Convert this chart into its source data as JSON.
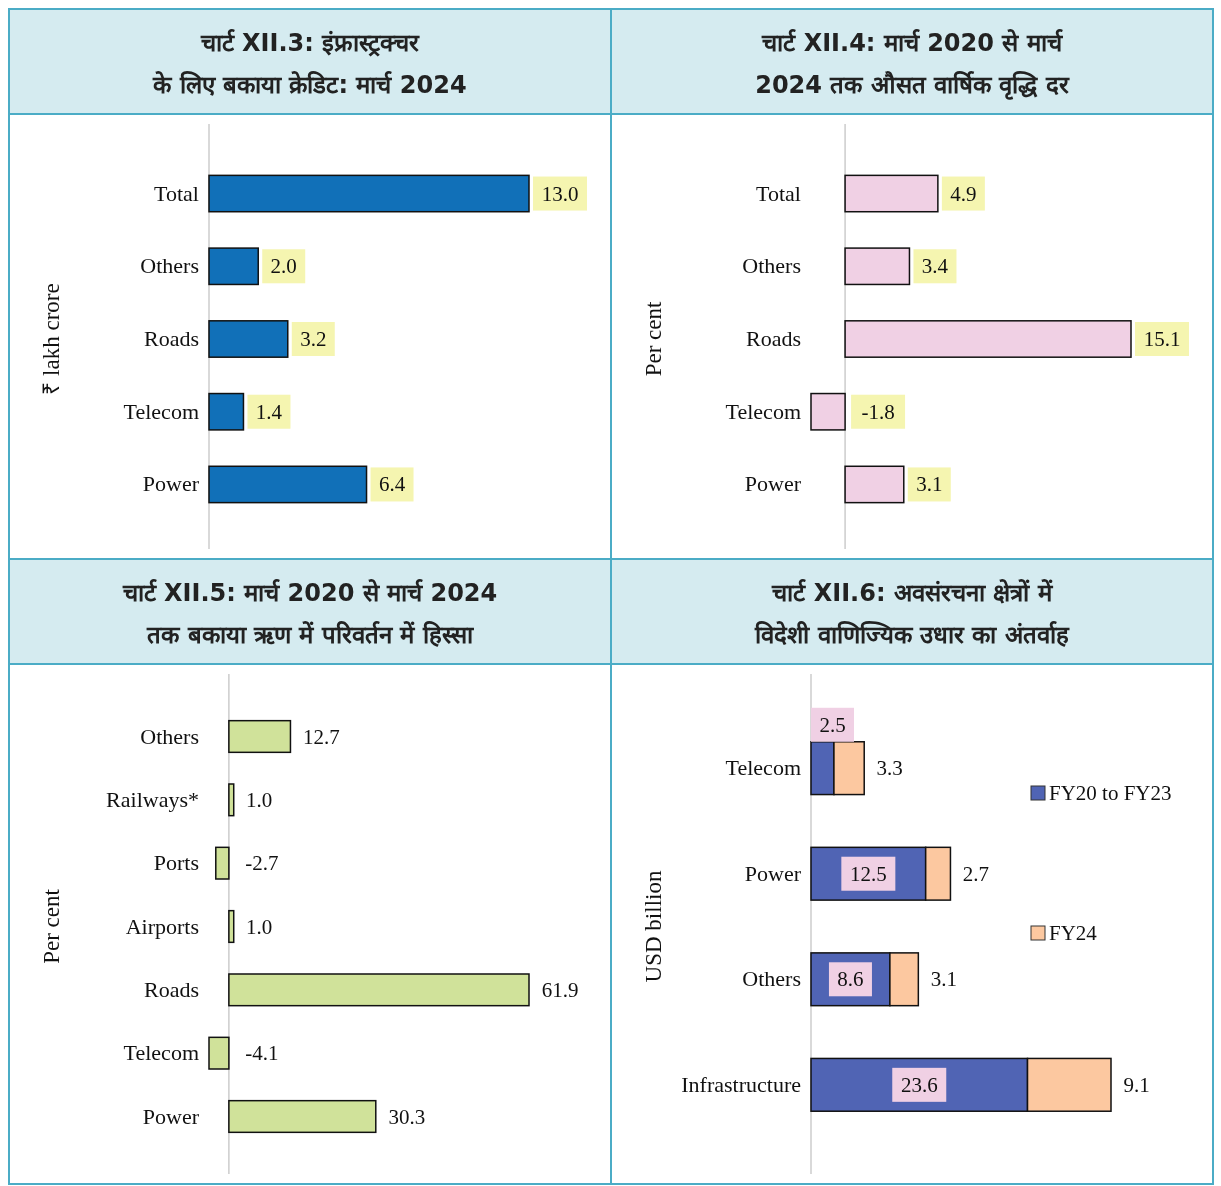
{
  "chart_data": [
    {
      "type": "bar",
      "orientation": "horizontal",
      "title": "चार्ट XII.3: इंफ्रास्ट्रक्चर के लिए बकाया क्रेडिट: मार्च 2024",
      "ylabel": "₹ lakh crore",
      "categories": [
        "Total",
        "Others",
        "Roads",
        "Telecom",
        "Power"
      ],
      "values": [
        13.0,
        2.0,
        3.2,
        1.4,
        6.4
      ],
      "value_labels": [
        "13.0",
        "2.0",
        "3.2",
        "1.4",
        "6.4"
      ],
      "color": "#1170b8"
    },
    {
      "type": "bar",
      "orientation": "horizontal",
      "title": "चार्ट XII.4: मार्च 2020 से मार्च 2024 तक औसत वार्षिक वृद्धि दर",
      "ylabel": "Per cent",
      "categories": [
        "Total",
        "Others",
        "Roads",
        "Telecom",
        "Power"
      ],
      "values": [
        4.9,
        3.4,
        15.1,
        -1.8,
        3.1
      ],
      "color": "#f0d0e4",
      "data_labels": true
    },
    {
      "type": "bar",
      "orientation": "horizontal",
      "title": "चार्ट XII.5: मार्च 2020 से मार्च 2024 तक बकाया ऋण में परिवर्तन में हिस्सा",
      "ylabel": "Per cent",
      "categories": [
        "Others",
        "Railways*",
        "Ports",
        "Airports",
        "Roads",
        "Telecom",
        "Power"
      ],
      "values": [
        12.7,
        1.0,
        -2.7,
        1.0,
        61.9,
        -4.1,
        30.3
      ],
      "value_labels": [
        "12.7",
        "1.0",
        "-2.7",
        "1.0",
        "61.9",
        "-4.1",
        "30.3"
      ],
      "color": "#d0e29a"
    },
    {
      "type": "bar",
      "orientation": "horizontal",
      "stacked": true,
      "legend": "right",
      "title": "चार्ट XII.6: अवसंरचना क्षेत्रों में विदेशी वाणिज्यिक उधार का अंतर्वाह",
      "ylabel": "USD billion",
      "categories": [
        "Telecom",
        "Power",
        "Others",
        "Infrastructure"
      ],
      "data_labels": true,
      "series": [
        {
          "name": "FY20 to FY23",
          "color": "#5064b4",
          "values": [
            2.5,
            12.5,
            8.6,
            23.6
          ]
        },
        {
          "name": "FY24",
          "color": "#fcc8a0",
          "values": [
            3.3,
            2.7,
            3.1,
            9.1
          ]
        }
      ]
    }
  ]
}
